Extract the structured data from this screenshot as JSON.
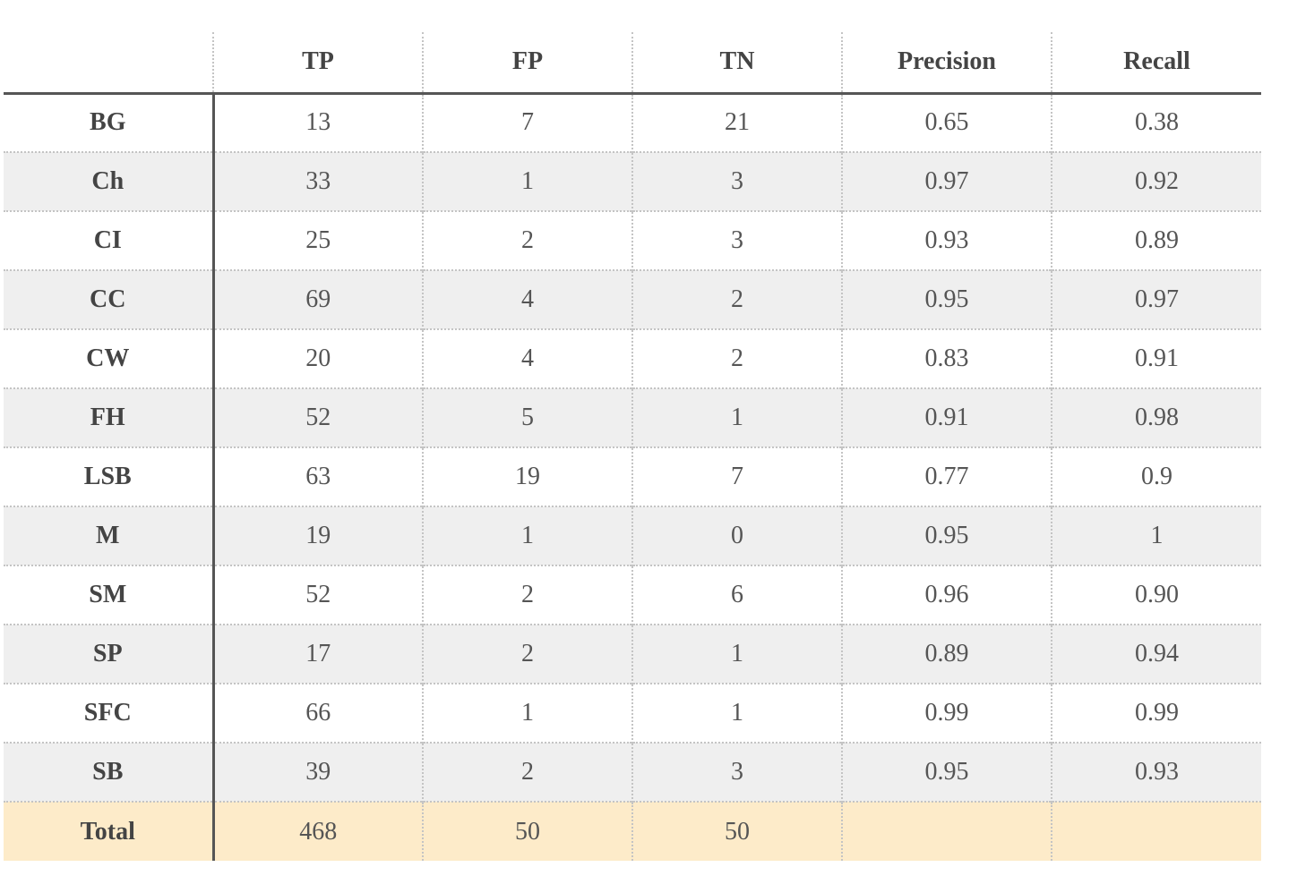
{
  "table": {
    "headers": [
      "",
      "TP",
      "FP",
      "TN",
      "Precision",
      "Recall"
    ],
    "rows": [
      {
        "label": "BG",
        "tp": "13",
        "fp": "7",
        "tn": "21",
        "precision": "0.65",
        "recall": "0.38"
      },
      {
        "label": "Ch",
        "tp": "33",
        "fp": "1",
        "tn": "3",
        "precision": "0.97",
        "recall": "0.92"
      },
      {
        "label": "CI",
        "tp": "25",
        "fp": "2",
        "tn": "3",
        "precision": "0.93",
        "recall": "0.89"
      },
      {
        "label": "CC",
        "tp": "69",
        "fp": "4",
        "tn": "2",
        "precision": "0.95",
        "recall": "0.97"
      },
      {
        "label": "CW",
        "tp": "20",
        "fp": "4",
        "tn": "2",
        "precision": "0.83",
        "recall": "0.91"
      },
      {
        "label": "FH",
        "tp": "52",
        "fp": "5",
        "tn": "1",
        "precision": "0.91",
        "recall": "0.98"
      },
      {
        "label": "LSB",
        "tp": "63",
        "fp": "19",
        "tn": "7",
        "precision": "0.77",
        "recall": "0.9"
      },
      {
        "label": "M",
        "tp": "19",
        "fp": "1",
        "tn": "0",
        "precision": "0.95",
        "recall": "1"
      },
      {
        "label": "SM",
        "tp": "52",
        "fp": "2",
        "tn": "6",
        "precision": "0.96",
        "recall": "0.90"
      },
      {
        "label": "SP",
        "tp": "17",
        "fp": "2",
        "tn": "1",
        "precision": "0.89",
        "recall": "0.94"
      },
      {
        "label": "SFC",
        "tp": "66",
        "fp": "1",
        "tn": "1",
        "precision": "0.99",
        "recall": "0.99"
      },
      {
        "label": "SB",
        "tp": "39",
        "fp": "2",
        "tn": "3",
        "precision": "0.95",
        "recall": "0.93"
      },
      {
        "label": "Total",
        "tp": "468",
        "fp": "50",
        "tn": "50",
        "precision": "",
        "recall": ""
      }
    ]
  },
  "colors": {
    "text": "#444444",
    "stripe": "#efefef",
    "total_row": "#fdebc9",
    "rule": "#555555",
    "grid": "#c4c4c4"
  }
}
